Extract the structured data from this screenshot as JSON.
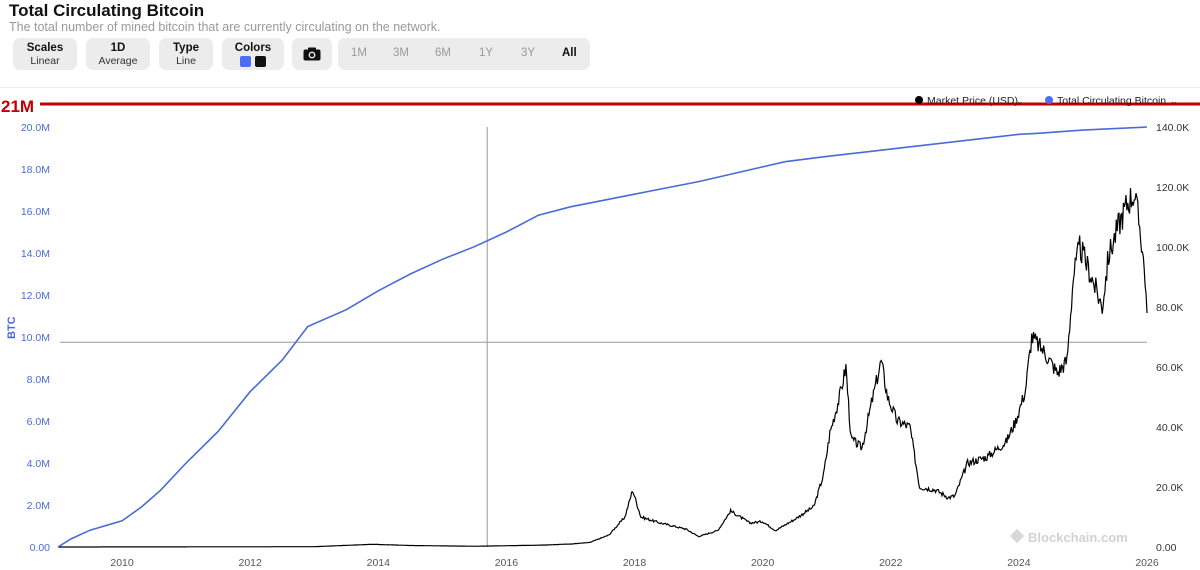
{
  "page": {
    "title": "Total Circulating Bitcoin",
    "subtitle": "The total number of mined bitcoin that are currently circulating on the network."
  },
  "controls": {
    "scales": {
      "label": "Scales",
      "value": "Linear"
    },
    "interval": {
      "label": "1D",
      "value": "Average"
    },
    "type": {
      "label": "Type",
      "value": "Line"
    },
    "colors": {
      "label": "Colors",
      "swatches": [
        "#4c6ef5",
        "#111111"
      ]
    },
    "camera_icon": "camera-icon",
    "ranges": [
      "1M",
      "3M",
      "6M",
      "1Y",
      "3Y",
      "All"
    ],
    "active_range": "All"
  },
  "annotation": {
    "text": "21M",
    "color": "#c00000"
  },
  "watermark": "Blockchain.com",
  "colors": {
    "supply": "#4a6bd6",
    "price": "#000000",
    "axis_left": "#4a6bd6",
    "annotation": "#c00000"
  },
  "chart_data": {
    "type": "line",
    "x_ticks": [
      "2010",
      "2012",
      "2014",
      "2016",
      "2018",
      "2020",
      "2022",
      "2024",
      "2026"
    ],
    "left_axis": {
      "label": "BTC",
      "ticks": [
        "0.00",
        "2.0M",
        "4.0M",
        "6.0M",
        "8.0M",
        "10.0M",
        "12.0M",
        "14.0M",
        "16.0M",
        "18.0M",
        "20.0M"
      ],
      "range": [
        0,
        20000000
      ]
    },
    "right_axis": {
      "ticks": [
        "0.00",
        "20.0K",
        "40.0K",
        "60.0K",
        "80.0K",
        "100.0K",
        "120.0K",
        "140.0K"
      ],
      "range": [
        0,
        140000
      ]
    },
    "legend": {
      "position": "top-right",
      "entries": [
        "Market Price (USD)",
        "Total Circulating Bitcoin"
      ]
    },
    "crosshair": {
      "x": 2015.7,
      "y_btc": 9750000
    },
    "series": [
      {
        "name": "Total Circulating Bitcoin",
        "axis": "left",
        "points": [
          [
            2009.0,
            0
          ],
          [
            2009.2,
            380000
          ],
          [
            2009.5,
            800000
          ],
          [
            2010.0,
            1250000
          ],
          [
            2010.3,
            1900000
          ],
          [
            2010.6,
            2700000
          ],
          [
            2011.0,
            4000000
          ],
          [
            2011.5,
            5500000
          ],
          [
            2012.0,
            7400000
          ],
          [
            2012.5,
            8900000
          ],
          [
            2012.9,
            10500000
          ],
          [
            2013.5,
            11300000
          ],
          [
            2014.0,
            12200000
          ],
          [
            2014.5,
            13000000
          ],
          [
            2015.0,
            13700000
          ],
          [
            2015.5,
            14300000
          ],
          [
            2016.0,
            15000000
          ],
          [
            2016.5,
            15800000
          ],
          [
            2017.0,
            16200000
          ],
          [
            2018.0,
            16800000
          ],
          [
            2019.0,
            17400000
          ],
          [
            2020.0,
            18100000
          ],
          [
            2020.35,
            18350000
          ],
          [
            2021.0,
            18600000
          ],
          [
            2022.0,
            18950000
          ],
          [
            2023.0,
            19300000
          ],
          [
            2024.0,
            19650000
          ],
          [
            2024.3,
            19700000
          ],
          [
            2025.0,
            19850000
          ],
          [
            2026.0,
            20000000
          ]
        ]
      },
      {
        "name": "Market Price (USD)",
        "axis": "right",
        "points": [
          [
            2009.0,
            0
          ],
          [
            2013.0,
            100
          ],
          [
            2013.9,
            900
          ],
          [
            2014.5,
            500
          ],
          [
            2015.5,
            250
          ],
          [
            2016.5,
            600
          ],
          [
            2017.0,
            1000
          ],
          [
            2017.3,
            1500
          ],
          [
            2017.6,
            4000
          ],
          [
            2017.85,
            10000
          ],
          [
            2017.97,
            19000
          ],
          [
            2018.1,
            10000
          ],
          [
            2018.4,
            8000
          ],
          [
            2018.8,
            6000
          ],
          [
            2019.0,
            3500
          ],
          [
            2019.3,
            5500
          ],
          [
            2019.5,
            12000
          ],
          [
            2019.8,
            8000
          ],
          [
            2020.0,
            8500
          ],
          [
            2020.2,
            5500
          ],
          [
            2020.5,
            9200
          ],
          [
            2020.8,
            13500
          ],
          [
            2020.95,
            24000
          ],
          [
            2021.05,
            38000
          ],
          [
            2021.2,
            50000
          ],
          [
            2021.3,
            60000
          ],
          [
            2021.38,
            36000
          ],
          [
            2021.55,
            33000
          ],
          [
            2021.7,
            48000
          ],
          [
            2021.85,
            62000
          ],
          [
            2021.95,
            50000
          ],
          [
            2022.1,
            42000
          ],
          [
            2022.3,
            40000
          ],
          [
            2022.45,
            20000
          ],
          [
            2022.7,
            19000
          ],
          [
            2022.9,
            16500
          ],
          [
            2023.0,
            17000
          ],
          [
            2023.2,
            28000
          ],
          [
            2023.5,
            30000
          ],
          [
            2023.8,
            35000
          ],
          [
            2023.95,
            42000
          ],
          [
            2024.1,
            52000
          ],
          [
            2024.2,
            70000
          ],
          [
            2024.4,
            65000
          ],
          [
            2024.6,
            58000
          ],
          [
            2024.75,
            62000
          ],
          [
            2024.85,
            90000
          ],
          [
            2024.95,
            100000
          ],
          [
            2025.1,
            92000
          ],
          [
            2025.3,
            80000
          ],
          [
            2025.4,
            97000
          ],
          [
            2025.55,
            107000
          ],
          [
            2025.7,
            115000
          ],
          [
            2025.8,
            118000
          ],
          [
            2025.9,
            105000
          ],
          [
            2025.97,
            90000
          ],
          [
            2026.0,
            78000
          ]
        ]
      }
    ]
  }
}
